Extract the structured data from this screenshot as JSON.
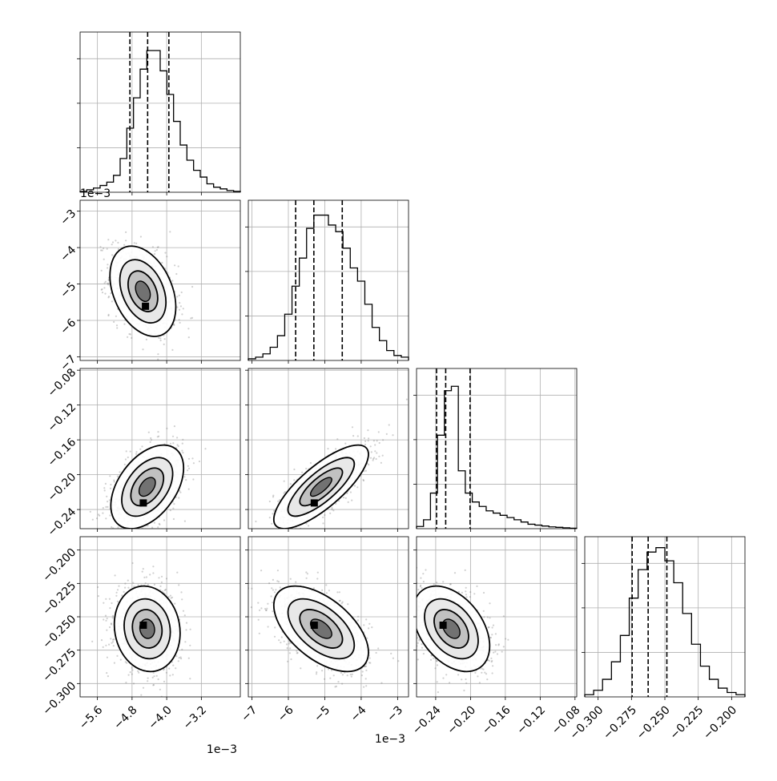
{
  "chart_data": {
    "type": "corner",
    "grid": true,
    "params": [
      {
        "range": [
          -6.0,
          -2.3
        ],
        "ticks": [
          -5.6,
          -4.8,
          -4.0,
          -3.2
        ],
        "tick_labels": [
          "−5.6",
          "−4.8",
          "−4.0",
          "−3.2"
        ],
        "y_ticks": [],
        "y_tick_labels": [],
        "offset_label": "1e−3",
        "hist_bins": [
          0.5,
          1.5,
          2.5,
          4,
          6,
          10,
          20,
          38,
          56,
          73,
          84,
          84,
          72,
          58,
          42,
          28,
          19,
          13,
          9,
          5,
          3,
          2,
          1,
          0.5
        ],
        "hist_max": 95,
        "quantiles": [
          -4.85,
          -4.44,
          -3.95
        ]
      },
      {
        "range": [
          -7.1,
          -2.7
        ],
        "ticks": [
          -7,
          -6,
          -5,
          -4,
          -3
        ],
        "tick_labels": [
          "−7",
          "−6",
          "−5",
          "−4",
          "−3"
        ],
        "y_ticks": [
          -3,
          -4,
          -5,
          -6,
          -7
        ],
        "y_tick_labels": [
          "−3",
          "−4",
          "−5",
          "−6",
          "−7"
        ],
        "offset_label": "1e−3",
        "hist_bins": [
          1,
          2,
          4,
          8,
          15,
          28,
          45,
          62,
          80,
          88,
          88,
          82,
          78,
          68,
          56,
          48,
          34,
          20,
          12,
          6,
          3,
          2
        ],
        "hist_max": 97,
        "quantiles": [
          -5.8,
          -5.3,
          -4.52
        ]
      },
      {
        "range": [
          -0.262,
          -0.078
        ],
        "ticks": [
          -0.24,
          -0.2,
          -0.16,
          -0.12,
          -0.08
        ],
        "tick_labels": [
          "−0.24",
          "−0.20",
          "−0.16",
          "−0.12",
          "−0.08"
        ],
        "y_ticks": [
          -0.08,
          -0.12,
          -0.16,
          -0.2,
          -0.24
        ],
        "y_tick_labels": [
          "−0.08",
          "−0.12",
          "−0.16",
          "−0.20",
          "−0.24"
        ],
        "offset_label": "",
        "hist_bins": [
          0.5,
          2,
          8,
          21,
          31,
          32,
          13,
          8,
          6,
          5,
          4,
          3.5,
          3,
          2.5,
          2,
          1.5,
          1,
          0.8,
          0.6,
          0.4,
          0.3,
          0.2,
          0.1
        ],
        "hist_max": 36,
        "quantiles": [
          -0.239,
          -0.2285,
          -0.2005
        ]
      },
      {
        "range": [
          -0.31,
          -0.19
        ],
        "ticks": [
          -0.3,
          -0.275,
          -0.25,
          -0.225,
          -0.2
        ],
        "tick_labels": [
          "−0.300",
          "−0.275",
          "−0.250",
          "−0.225",
          "−0.200"
        ],
        "y_ticks": [
          -0.2,
          -0.225,
          -0.25,
          -0.275,
          -0.3
        ],
        "y_tick_labels": [
          "−0.200",
          "−0.225",
          "−0.250",
          "−0.275",
          "−0.300"
        ],
        "offset_label": "",
        "hist_bins": [
          1,
          3,
          8,
          16,
          28,
          45,
          58,
          66,
          68,
          62,
          52,
          38,
          24,
          14,
          8,
          4,
          2,
          1
        ],
        "hist_max": 73,
        "quantiles": [
          -0.2745,
          -0.2625,
          -0.2485
        ]
      }
    ],
    "panels": [
      {
        "row": 1,
        "col": 0,
        "mean": [
          -4.55,
          -5.2
        ],
        "sd": [
          0.38,
          0.62
        ],
        "rho": -0.35,
        "mode": [
          -4.5,
          -5.6
        ]
      },
      {
        "row": 2,
        "col": 0,
        "mean": [
          -4.45,
          -0.214
        ],
        "sd": [
          0.42,
          0.024
        ],
        "rho": 0.45,
        "mode": [
          -4.55,
          -0.232
        ]
      },
      {
        "row": 2,
        "col": 1,
        "mean": [
          -5.1,
          -0.214
        ],
        "sd": [
          0.65,
          0.024
        ],
        "rho": 0.78,
        "mode": [
          -5.3,
          -0.232
        ]
      },
      {
        "row": 3,
        "col": 0,
        "mean": [
          -4.45,
          -0.259
        ],
        "sd": [
          0.38,
          0.016
        ],
        "rho": -0.1,
        "mode": [
          -4.55,
          -0.256
        ]
      },
      {
        "row": 3,
        "col": 1,
        "mean": [
          -5.1,
          -0.259
        ],
        "sd": [
          0.65,
          0.016
        ],
        "rho": -0.55,
        "mode": [
          -5.3,
          -0.256
        ]
      },
      {
        "row": 3,
        "col": 2,
        "mean": [
          -0.222,
          -0.259
        ],
        "sd": [
          0.022,
          0.016
        ],
        "rho": -0.4,
        "mode": [
          -0.232,
          -0.256
        ]
      }
    ]
  }
}
